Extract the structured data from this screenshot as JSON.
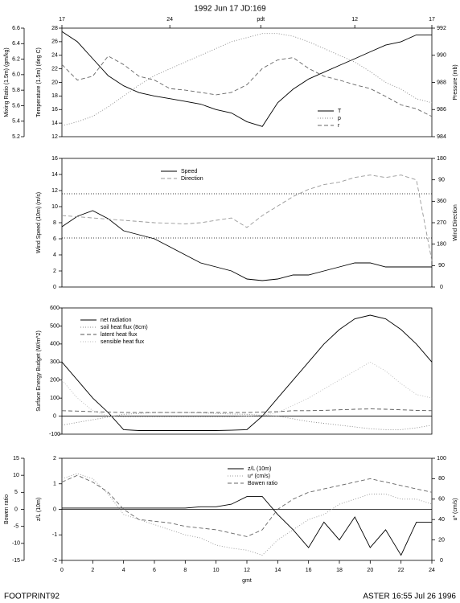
{
  "footer": {
    "left": "FOOTPRINT92",
    "right": "ASTER 16:55 Jul 26 1996"
  },
  "chart_data": [
    {
      "type": "line",
      "title": "1992 Jun 17 JD:169",
      "x": [
        0,
        1,
        2,
        3,
        4,
        5,
        6,
        7,
        8,
        9,
        10,
        11,
        12,
        13,
        14,
        15,
        16,
        17,
        18,
        19,
        20,
        21,
        22,
        23,
        24
      ],
      "xlim": [
        0,
        24
      ],
      "x2ticks": [
        {
          "value": 0,
          "label": "17"
        },
        {
          "value": 7,
          "label": "24"
        },
        {
          "value": 12.9,
          "label": "pdt"
        },
        {
          "value": 19,
          "label": "12"
        },
        {
          "value": 24,
          "label": "17"
        }
      ],
      "ylabel": "Temperature (1.5m) (deg C)",
      "ylim": [
        12,
        28
      ],
      "yticks": [
        12,
        14,
        16,
        18,
        20,
        22,
        24,
        26,
        28
      ],
      "y3label": "Mixing Ratio (1.5m) (gm/kg)",
      "y3lim": [
        5.2,
        6.6
      ],
      "y3ticks": [
        5.2,
        5.4,
        5.6,
        5.8,
        {
          "value": 6,
          "label": "6.0"
        },
        6.2,
        6.4,
        6.6
      ],
      "y2label": "Pressure (mb)",
      "y2lim": [
        984,
        992
      ],
      "y2ticks": [
        984,
        986,
        988,
        990,
        992
      ],
      "series": [
        {
          "name": "T",
          "color": "#000000",
          "dash": "solid",
          "axis": "y",
          "values": [
            27.5,
            26,
            23.5,
            21,
            19.5,
            18.5,
            18,
            17.6,
            17.2,
            16.8,
            16,
            15.5,
            14.2,
            13.5,
            17,
            19,
            20.5,
            21.5,
            22.5,
            23.5,
            24.5,
            25.5,
            26,
            27,
            27
          ]
        },
        {
          "name": "p",
          "color": "#888888",
          "dash": "dotted",
          "axis": "y2",
          "values": [
            984.8,
            985.1,
            985.5,
            986.2,
            987,
            987.8,
            988.5,
            989,
            989.5,
            990,
            990.5,
            991,
            991.3,
            991.6,
            991.6,
            991.4,
            991,
            990.5,
            990,
            989.5,
            988.8,
            988,
            987.5,
            986.8,
            986.5
          ]
        },
        {
          "name": "r",
          "color": "#666666",
          "dash": "dashed",
          "axis": "y3",
          "values": [
            6.13,
            5.93,
            5.98,
            6.24,
            6.13,
            5.98,
            5.93,
            5.82,
            5.8,
            5.77,
            5.74,
            5.77,
            5.87,
            6.08,
            6.19,
            6.22,
            6.08,
            5.98,
            5.93,
            5.87,
            5.82,
            5.72,
            5.61,
            5.56,
            5.46
          ]
        }
      ]
    },
    {
      "type": "line",
      "x": [
        0,
        1,
        2,
        3,
        4,
        5,
        6,
        7,
        8,
        9,
        10,
        11,
        12,
        13,
        14,
        15,
        16,
        17,
        18,
        19,
        20,
        21,
        22,
        23,
        24
      ],
      "xlim": [
        0,
        24
      ],
      "ylabel": "Wind Speed (10m) (m/s)",
      "ylim": [
        0,
        16
      ],
      "yticks": [
        0,
        2,
        4,
        6,
        8,
        10,
        12,
        14,
        16
      ],
      "y2label": "Wind Direction",
      "y2lim": [
        0,
        540
      ],
      "y2ticks": [
        0,
        90,
        180,
        270,
        360,
        {
          "value": 450,
          "label": "90"
        },
        {
          "value": 540,
          "label": "180"
        }
      ],
      "hlines": [
        11.6,
        6.1
      ],
      "series": [
        {
          "name": "Speed",
          "color": "#000000",
          "dash": "solid",
          "axis": "y",
          "values": [
            7.5,
            8.8,
            9.5,
            8.5,
            7,
            6.5,
            6,
            5,
            4,
            3,
            2.5,
            2,
            1,
            0.8,
            1,
            1.5,
            1.5,
            2,
            2.5,
            3,
            3,
            2.5,
            2.5,
            2.5,
            2.5
          ]
        },
        {
          "name": "Direction",
          "color": "#999999",
          "dash": "dashed",
          "axis": "y2",
          "values": [
            300,
            295,
            290,
            285,
            280,
            275,
            270,
            268,
            265,
            270,
            280,
            290,
            250,
            300,
            340,
            380,
            410,
            430,
            440,
            460,
            470,
            460,
            470,
            450,
            110
          ]
        }
      ]
    },
    {
      "type": "line",
      "x": [
        0,
        1,
        2,
        3,
        4,
        5,
        6,
        7,
        8,
        9,
        10,
        11,
        12,
        13,
        14,
        15,
        16,
        17,
        18,
        19,
        20,
        21,
        22,
        23,
        24
      ],
      "xlim": [
        0,
        24
      ],
      "ylabel": "Surface Energy Budget (W/m^2)",
      "ylim": [
        -100,
        600
      ],
      "yticks": [
        -100,
        0,
        100,
        200,
        300,
        400,
        500,
        600
      ],
      "zero_line": true,
      "series": [
        {
          "name": "net radiation",
          "color": "#000000",
          "dash": "solid",
          "axis": "y",
          "values": [
            300,
            200,
            100,
            20,
            -75,
            -80,
            -80,
            -80,
            -80,
            -80,
            -80,
            -78,
            -75,
            0,
            100,
            200,
            300,
            400,
            480,
            540,
            560,
            540,
            480,
            400,
            300
          ]
        },
        {
          "name": "soil heat flux (8cm)",
          "color": "#888888",
          "dash": "dotted",
          "axis": "y",
          "values": [
            -50,
            -35,
            -20,
            -5,
            10,
            15,
            20,
            20,
            20,
            18,
            15,
            12,
            10,
            5,
            0,
            -15,
            -30,
            -40,
            -50,
            -60,
            -70,
            -75,
            -75,
            -65,
            -50
          ]
        },
        {
          "name": "latent heat flux",
          "color": "#555555",
          "dash": "dashed",
          "axis": "y",
          "values": [
            30,
            28,
            25,
            22,
            20,
            20,
            20,
            20,
            20,
            20,
            20,
            20,
            20,
            22,
            25,
            30,
            30,
            32,
            35,
            38,
            40,
            38,
            35,
            32,
            30
          ]
        },
        {
          "name": "sensible heat flux",
          "color": "#bbbbbb",
          "dash": "dotted",
          "axis": "y",
          "values": [
            200,
            100,
            30,
            0,
            -5,
            -5,
            -5,
            -5,
            -5,
            -5,
            -5,
            -5,
            0,
            5,
            20,
            60,
            100,
            150,
            200,
            250,
            300,
            250,
            180,
            120,
            100
          ]
        }
      ]
    },
    {
      "type": "line",
      "xlabel": "gmt",
      "x": [
        0,
        1,
        2,
        3,
        4,
        5,
        6,
        7,
        8,
        9,
        10,
        11,
        12,
        13,
        14,
        15,
        16,
        17,
        18,
        19,
        20,
        21,
        22,
        23,
        24
      ],
      "xlim": [
        0,
        24
      ],
      "xticks": [
        0,
        2,
        4,
        6,
        8,
        10,
        12,
        14,
        16,
        18,
        20,
        22,
        24
      ],
      "ylabel": "z/L (10m)",
      "ylim": [
        -2,
        2
      ],
      "yticks": [
        -2,
        -1,
        0,
        1,
        2
      ],
      "y3label": "Bowen ratio",
      "y3lim": [
        -15,
        15
      ],
      "y3ticks": [
        -15,
        -10,
        -5,
        0,
        5,
        10,
        15
      ],
      "y2label": "u* (cm/s)",
      "y2lim": [
        0,
        100
      ],
      "y2ticks": [
        0,
        20,
        40,
        60,
        80,
        100
      ],
      "zero_line": true,
      "series": [
        {
          "name": "z/L (10m)",
          "color": "#000000",
          "dash": "solid",
          "axis": "y",
          "values": [
            0.05,
            0.05,
            0.05,
            0.05,
            0.05,
            0.05,
            0.05,
            0.05,
            0.05,
            0.1,
            0.1,
            0.2,
            0.5,
            0.5,
            -0.2,
            -0.8,
            -1.5,
            -0.5,
            -1.2,
            -0.3,
            -1.5,
            -0.8,
            -1.8,
            -0.5,
            -0.5
          ]
        },
        {
          "name": "u* (cm/s)",
          "color": "#999999",
          "dash": "dotted",
          "axis": "y2",
          "values": [
            80,
            85,
            80,
            65,
            45,
            40,
            35,
            30,
            25,
            22,
            15,
            12,
            10,
            5,
            20,
            30,
            40,
            45,
            55,
            60,
            65,
            65,
            60,
            60,
            55
          ]
        },
        {
          "name": "Bowen ratio",
          "color": "#666666",
          "dash": "dashed",
          "axis": "y3",
          "values": [
            8,
            10,
            8,
            5,
            0,
            -3,
            -3.5,
            -4,
            -5,
            -5.5,
            -6,
            -7,
            -8,
            -6,
            0,
            3,
            5,
            6,
            7,
            8,
            9,
            8,
            7,
            6,
            5
          ]
        }
      ]
    }
  ]
}
